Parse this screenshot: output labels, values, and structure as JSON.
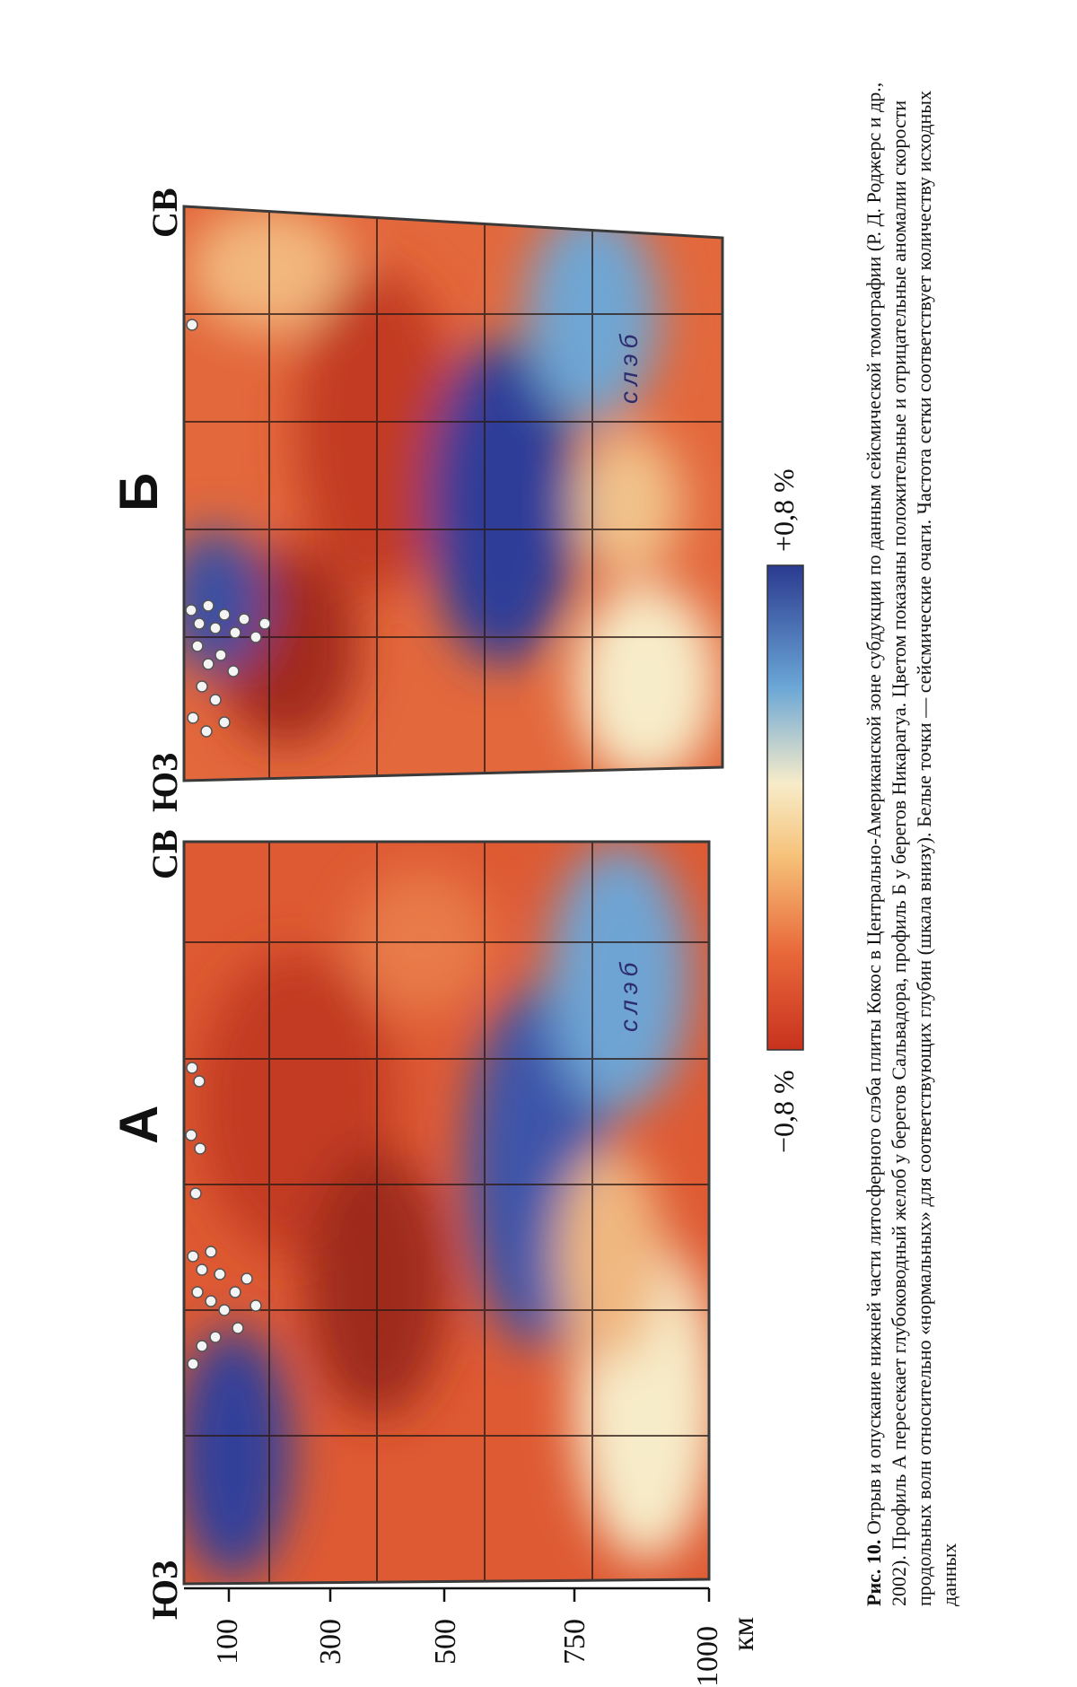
{
  "figure": {
    "panel_a_label": "А",
    "panel_b_label": "Б",
    "panel_a_left_dir": "ЮЗ",
    "panel_a_right_dir": "СВ",
    "panel_b_left_dir": "ЮЗ",
    "panel_b_right_dir": "СВ",
    "slab_label_a": "слэб",
    "slab_label_b": "слэб",
    "depth_ticks": [
      "100",
      "300",
      "500",
      "750",
      "1000"
    ],
    "depth_unit": "км",
    "colorbar_min": "−0,8 %",
    "colorbar_max": "+0,8 %",
    "colors": {
      "negative": "#d9442a",
      "neutral": "#f7ecc9",
      "positive": "#2b3a8f"
    }
  },
  "caption": {
    "fig_label": "Рис. 10.",
    "text": "Отрыв и опускание нижней части литосферного слэба плиты Кокос в Центрально-Американской зоне субдукции по данным сейсмической томографии (Р. Д. Роджерс и др., 2002). Профиль А пересекает глубоководный желоб у берегов Сальвадора, профиль Б у берегов Никарагуа. Цветом показаны положительные и отрицательные аномалии скорости продольных волн относительно «нормальных» для соответствующих глубин (шкала внизу). Белые точки — сейсмические очаги. Частота сетки соответствует количеству исходных данных"
  }
}
